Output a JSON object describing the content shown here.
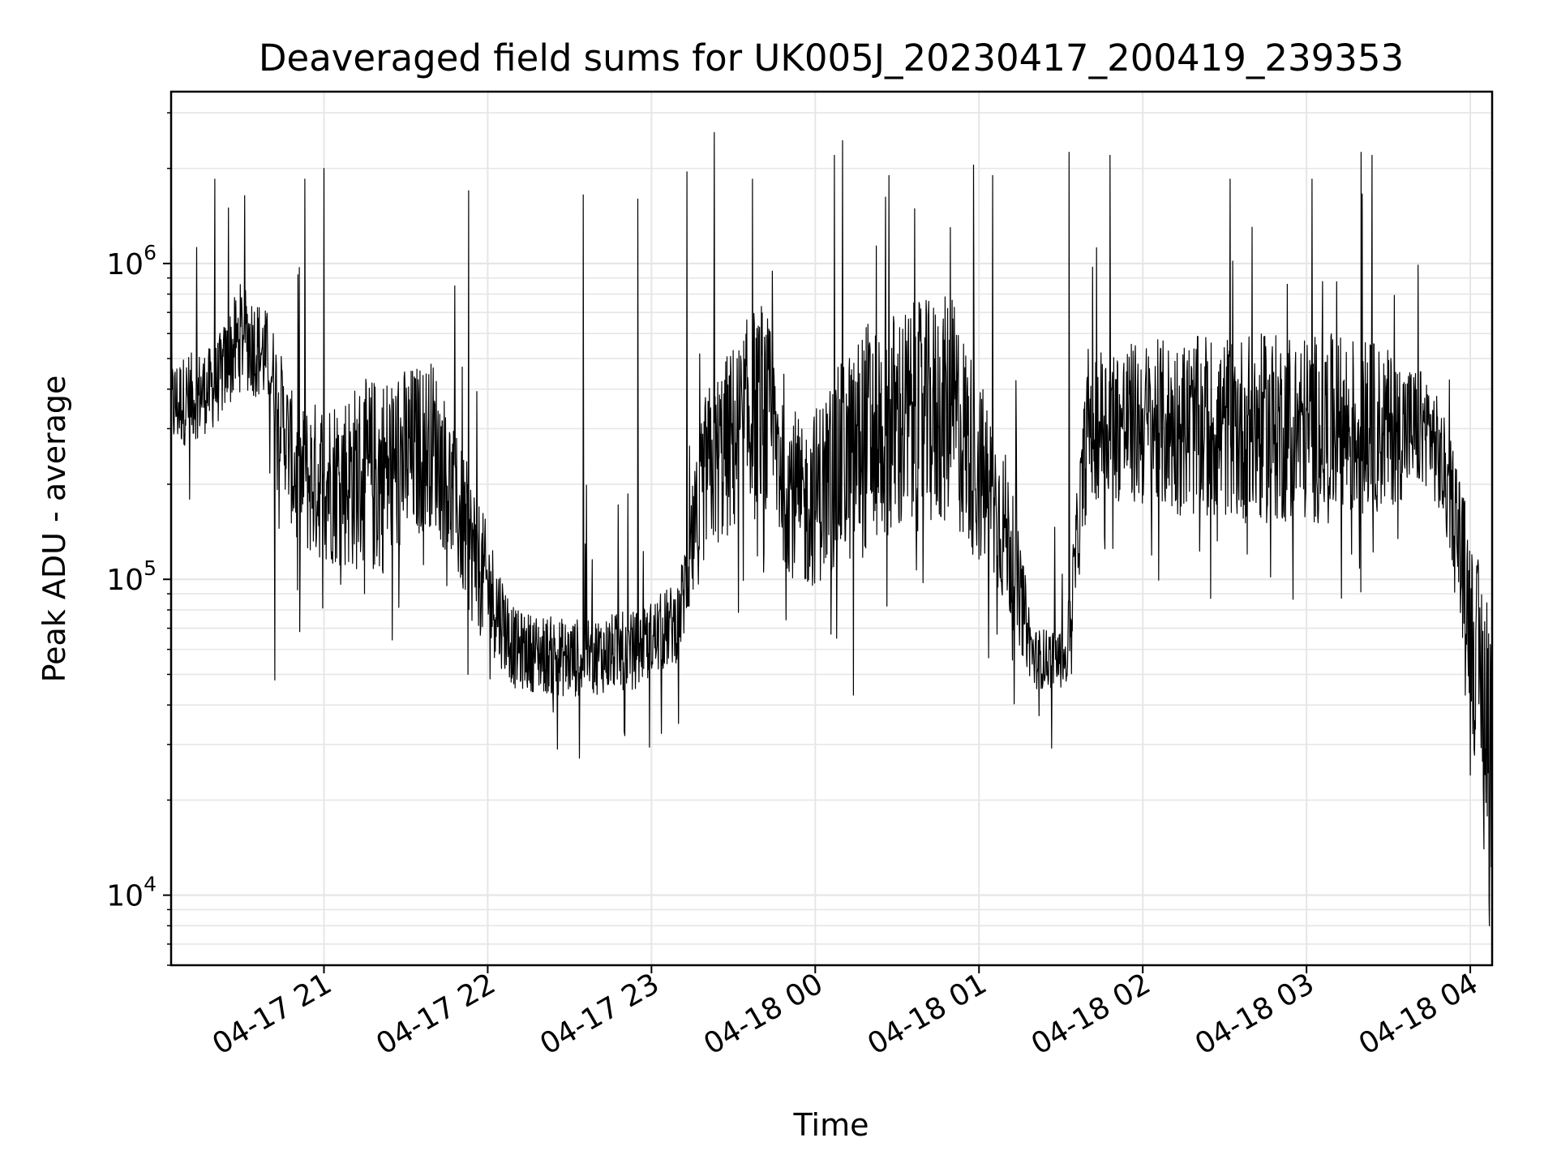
{
  "chart_data": {
    "type": "line",
    "title": "Deaveraged field sums for UK005J_20230417_200419_239353",
    "xlabel": "Time",
    "ylabel": "Peak ADU - average",
    "yscale": "log",
    "ylim": [
      6000,
      3500000
    ],
    "xlim": [
      "2023-04-17 20:04",
      "2023-04-18 04:08"
    ],
    "grid": true,
    "x_ticks": [
      {
        "value": "2023-04-17 21:00",
        "label": "04-17 21"
      },
      {
        "value": "2023-04-17 22:00",
        "label": "04-17 22"
      },
      {
        "value": "2023-04-17 23:00",
        "label": "04-17 23"
      },
      {
        "value": "2023-04-18 00:00",
        "label": "04-18 00"
      },
      {
        "value": "2023-04-18 01:00",
        "label": "04-18 01"
      },
      {
        "value": "2023-04-18 02:00",
        "label": "04-18 02"
      },
      {
        "value": "2023-04-18 03:00",
        "label": "04-18 03"
      },
      {
        "value": "2023-04-18 04:00",
        "label": "04-18 04"
      }
    ],
    "y_ticks": [
      {
        "value": 10000,
        "base": "10",
        "exp": "4"
      },
      {
        "value": 100000,
        "base": "10",
        "exp": "5"
      },
      {
        "value": 1000000,
        "base": "10",
        "exp": "6"
      }
    ],
    "series": [
      {
        "color": "#000000",
        "envelope": [
          {
            "x": "2023-04-17 20:04",
            "low": 250000,
            "high": 500000
          },
          {
            "x": "2023-04-17 20:20",
            "low": 300000,
            "high": 550000
          },
          {
            "x": "2023-04-17 20:30",
            "low": 400000,
            "high": 900000
          },
          {
            "x": "2023-04-17 20:40",
            "low": 350000,
            "high": 700000
          },
          {
            "x": "2023-04-17 20:50",
            "low": 120000,
            "high": 350000
          },
          {
            "x": "2023-04-17 21:20",
            "low": 100000,
            "high": 450000
          },
          {
            "x": "2023-04-17 21:40",
            "low": 150000,
            "high": 500000
          },
          {
            "x": "2023-04-17 21:55",
            "low": 70000,
            "high": 200000
          },
          {
            "x": "2023-04-17 22:10",
            "low": 45000,
            "high": 80000
          },
          {
            "x": "2023-04-17 22:30",
            "low": 42000,
            "high": 75000
          },
          {
            "x": "2023-04-17 22:55",
            "low": 45000,
            "high": 80000
          },
          {
            "x": "2023-04-17 23:10",
            "low": 55000,
            "high": 100000
          },
          {
            "x": "2023-04-17 23:20",
            "low": 120000,
            "high": 400000
          },
          {
            "x": "2023-04-17 23:40",
            "low": 150000,
            "high": 800000
          },
          {
            "x": "2023-04-17 23:55",
            "low": 90000,
            "high": 300000
          },
          {
            "x": "2023-04-18 00:20",
            "low": 120000,
            "high": 700000
          },
          {
            "x": "2023-04-18 00:50",
            "low": 150000,
            "high": 800000
          },
          {
            "x": "2023-04-18 01:10",
            "low": 80000,
            "high": 250000
          },
          {
            "x": "2023-04-18 01:20",
            "low": 45000,
            "high": 70000
          },
          {
            "x": "2023-04-18 01:32",
            "low": 45000,
            "high": 70000
          },
          {
            "x": "2023-04-18 01:40",
            "low": 180000,
            "high": 550000
          },
          {
            "x": "2023-04-18 02:30",
            "low": 150000,
            "high": 600000
          },
          {
            "x": "2023-04-18 03:20",
            "low": 150000,
            "high": 600000
          },
          {
            "x": "2023-04-18 03:45",
            "low": 200000,
            "high": 450000
          },
          {
            "x": "2023-04-18 03:55",
            "low": 100000,
            "high": 250000
          },
          {
            "x": "2023-04-18 04:02",
            "low": 25000,
            "high": 120000
          },
          {
            "x": "2023-04-18 04:08",
            "low": 15000,
            "high": 100000
          }
        ],
        "spikes": [
          {
            "x": "2023-04-17 20:20",
            "y": 1850000
          },
          {
            "x": "2023-04-17 20:25",
            "y": 1500000
          },
          {
            "x": "2023-04-17 20:53",
            "y": 1850000
          },
          {
            "x": "2023-04-17 21:00",
            "y": 2000000
          },
          {
            "x": "2023-04-17 21:53",
            "y": 1700000
          },
          {
            "x": "2023-04-17 22:35",
            "y": 1650000
          },
          {
            "x": "2023-04-17 22:55",
            "y": 1600000
          },
          {
            "x": "2023-04-17 23:13",
            "y": 1950000
          },
          {
            "x": "2023-04-17 23:23",
            "y": 2600000
          },
          {
            "x": "2023-04-17 23:37",
            "y": 1850000
          },
          {
            "x": "2023-04-18 00:07",
            "y": 2200000
          },
          {
            "x": "2023-04-18 00:10",
            "y": 2450000
          },
          {
            "x": "2023-04-18 00:27",
            "y": 1900000
          },
          {
            "x": "2023-04-18 00:58",
            "y": 2050000
          },
          {
            "x": "2023-04-18 01:05",
            "y": 1900000
          },
          {
            "x": "2023-04-18 01:33",
            "y": 2250000
          },
          {
            "x": "2023-04-18 01:48",
            "y": 2200000
          },
          {
            "x": "2023-04-18 02:32",
            "y": 1850000
          },
          {
            "x": "2023-04-18 03:02",
            "y": 1850000
          },
          {
            "x": "2023-04-18 03:20",
            "y": 2250000
          },
          {
            "x": "2023-04-18 03:24",
            "y": 2200000
          }
        ],
        "dips": [
          {
            "x": "2023-04-17 20:42",
            "y": 48000
          },
          {
            "x": "2023-04-17 22:24",
            "y": 38000
          },
          {
            "x": "2023-04-17 22:50",
            "y": 33000
          },
          {
            "x": "2023-04-18 00:14",
            "y": 43000
          },
          {
            "x": "2023-04-18 01:22",
            "y": 37000
          },
          {
            "x": "2023-04-18 04:00",
            "y": 24000
          },
          {
            "x": "2023-04-18 04:05",
            "y": 14000
          },
          {
            "x": "2023-04-18 04:07",
            "y": 8000
          }
        ]
      }
    ]
  }
}
